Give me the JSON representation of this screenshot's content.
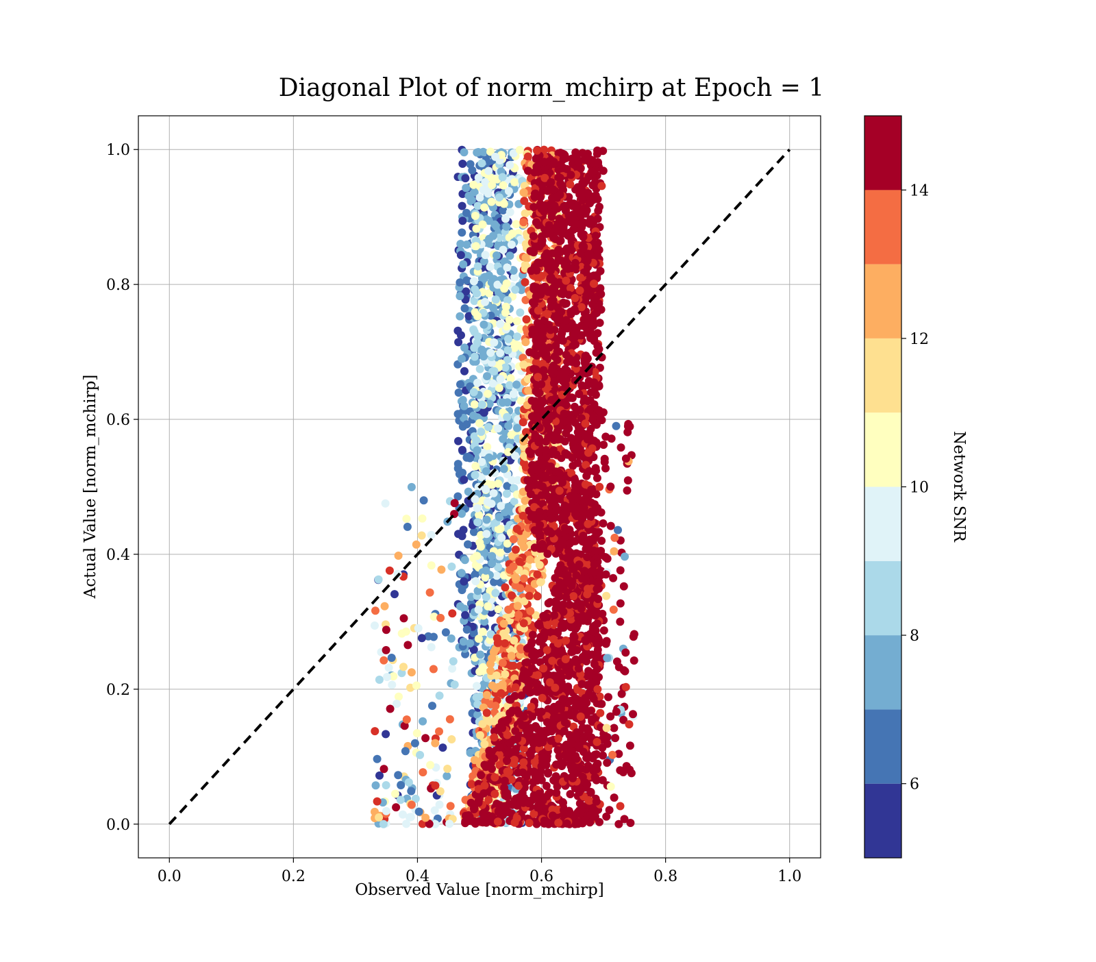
{
  "chart_data": {
    "type": "scatter",
    "title": "Diagonal Plot of norm_mchirp at Epoch = 1",
    "xlabel": "Observed Value [norm_mchirp]",
    "ylabel": "Actual Value [norm_mchirp]",
    "xlim": [
      -0.05,
      1.05
    ],
    "ylim": [
      -0.05,
      1.05
    ],
    "xticks": [
      "0.0",
      "0.2",
      "0.4",
      "0.6",
      "0.8",
      "1.0"
    ],
    "yticks": [
      "0.0",
      "0.2",
      "0.4",
      "0.6",
      "0.8",
      "1.0"
    ],
    "grid": true,
    "reference_line": {
      "style": "dashed",
      "color": "#000000",
      "from": [
        0,
        0
      ],
      "to": [
        1,
        1
      ]
    },
    "colorbar": {
      "label": "Network SNR",
      "range": [
        5,
        15
      ],
      "ticks": [
        "6",
        "8",
        "10",
        "12",
        "14"
      ],
      "colors": [
        "#313695",
        "#4575b4",
        "#74add1",
        "#abd9e9",
        "#e0f3f8",
        "#ffffbf",
        "#fee090",
        "#fdae61",
        "#f46d43",
        "#d73027",
        "#a50026"
      ]
    },
    "point_clusters": [
      {
        "snr_band": "high (≥14)",
        "x_range": [
          0.58,
          0.72
        ],
        "y_range": [
          0.0,
          1.0
        ],
        "color": "#a50026"
      },
      {
        "snr_band": "high (≥14) wedge",
        "x_range": [
          0.45,
          0.6
        ],
        "y_range": [
          0.0,
          0.35
        ],
        "color": "#a50026"
      },
      {
        "snr_band": "mid (10-14)",
        "x_range": [
          0.5,
          0.6
        ],
        "y_range": [
          0.0,
          1.0
        ],
        "color": "#fdae61"
      },
      {
        "snr_band": "low (6-10)",
        "x_range": [
          0.46,
          0.56
        ],
        "y_range": [
          0.15,
          1.0
        ],
        "color": "#74add1"
      },
      {
        "snr_band": "lowest (<6)",
        "x_range": [
          0.46,
          0.52
        ],
        "y_range": [
          0.2,
          1.0
        ],
        "color": "#313695"
      }
    ]
  }
}
